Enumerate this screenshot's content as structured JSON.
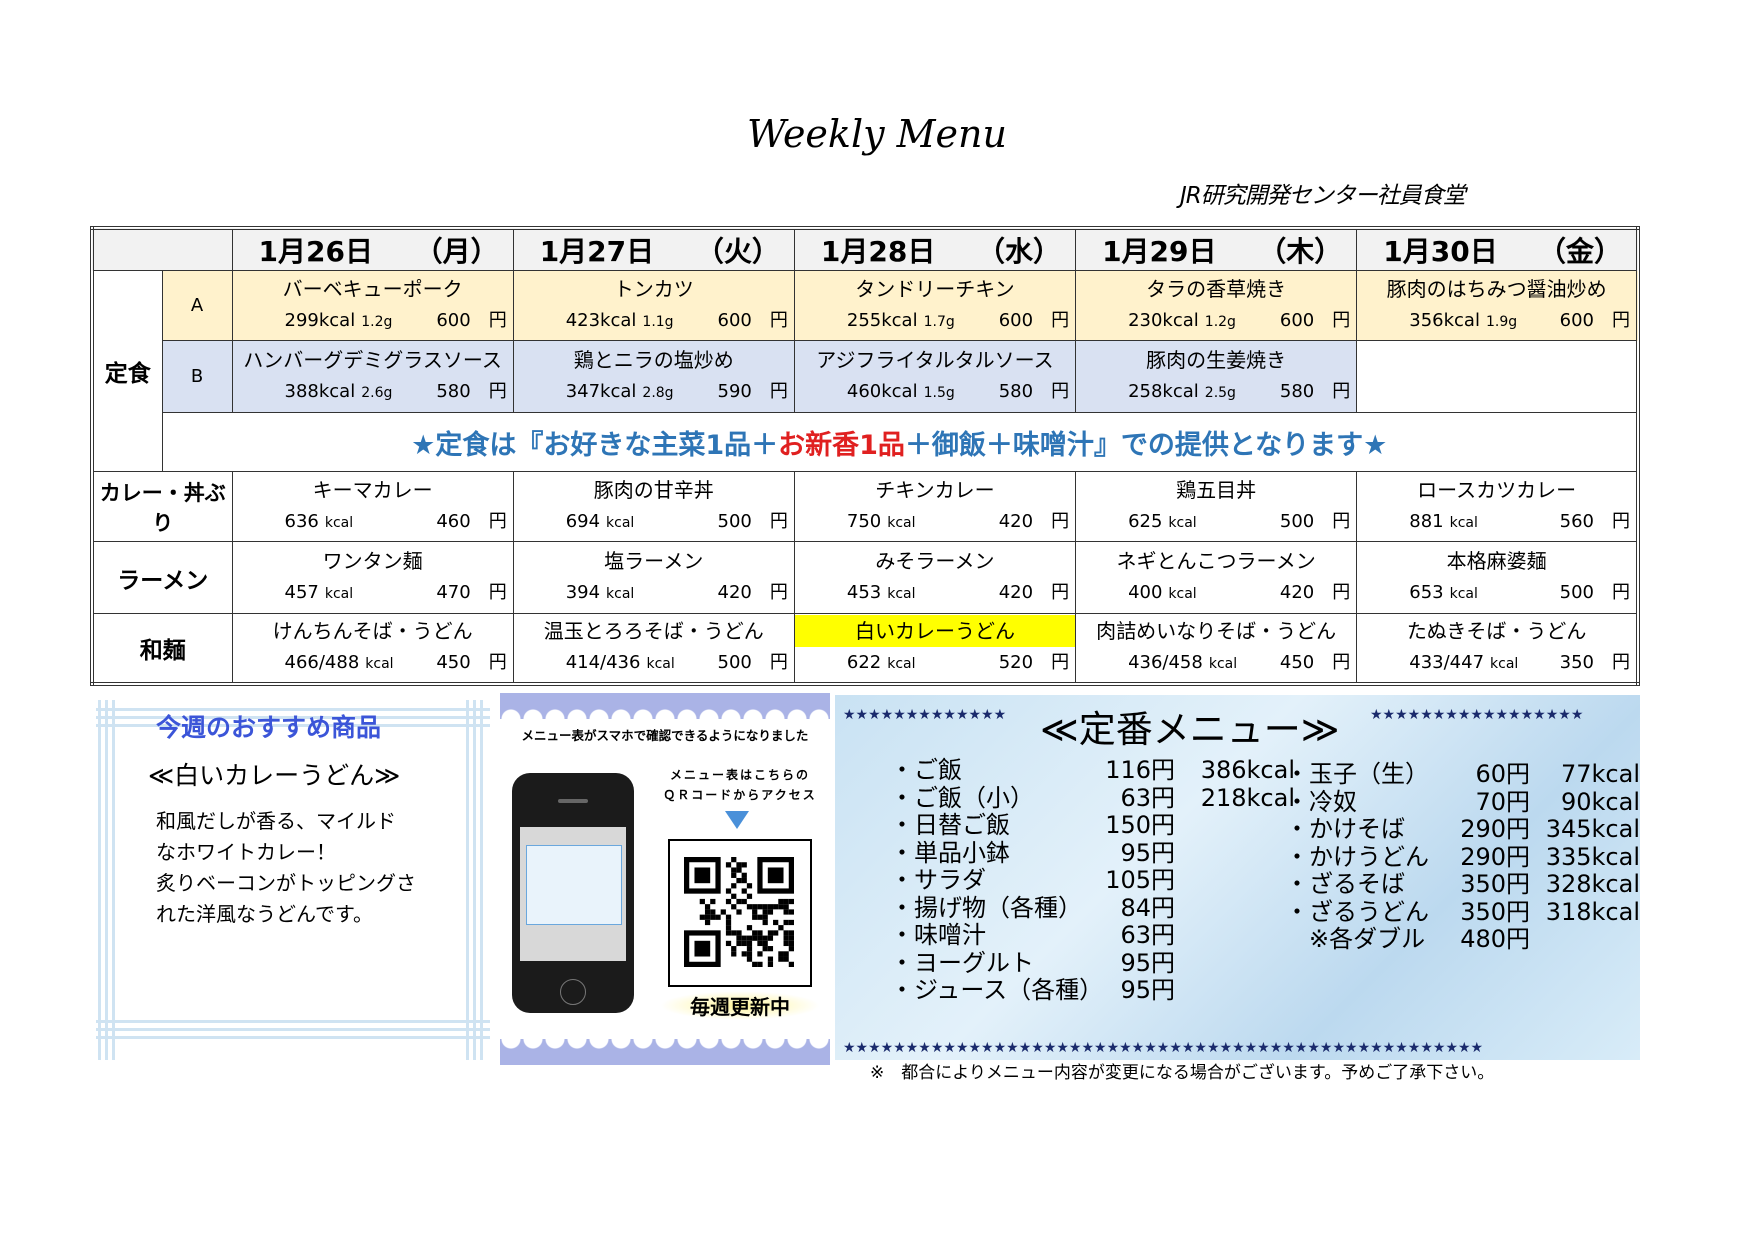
{
  "title": "Weekly Menu",
  "subtitle": "JR研究開発センター社員食堂",
  "days": [
    {
      "date": "1月26日",
      "dow": "（月）"
    },
    {
      "date": "1月27日",
      "dow": "（火）"
    },
    {
      "date": "1月28日",
      "dow": "（水）"
    },
    {
      "date": "1月29日",
      "dow": "（木）"
    },
    {
      "date": "1月30日",
      "dow": "（金）"
    }
  ],
  "teishoku": {
    "label": "定食",
    "a_label": "A",
    "b_label": "B",
    "a": [
      {
        "name": "バーベキューポーク",
        "kcal": "299kcal",
        "salt": "1.2g",
        "price": "600",
        "yen": "円"
      },
      {
        "name": "トンカツ",
        "kcal": "423kcal",
        "salt": "1.1g",
        "price": "600",
        "yen": "円"
      },
      {
        "name": "タンドリーチキン",
        "kcal": "255kcal",
        "salt": "1.7g",
        "price": "600",
        "yen": "円"
      },
      {
        "name": "タラの香草焼き",
        "kcal": "230kcal",
        "salt": "1.2g",
        "price": "600",
        "yen": "円"
      },
      {
        "name": "豚肉のはちみつ醤油炒め",
        "kcal": "356kcal",
        "salt": "1.9g",
        "price": "600",
        "yen": "円"
      }
    ],
    "b": [
      {
        "name": "ハンバーグデミグラスソース",
        "kcal": "388kcal",
        "salt": "2.6g",
        "price": "580",
        "yen": "円"
      },
      {
        "name": "鶏とニラの塩炒め",
        "kcal": "347kcal",
        "salt": "2.8g",
        "price": "590",
        "yen": "円"
      },
      {
        "name": "アジフライタルタルソース",
        "kcal": "460kcal",
        "salt": "1.5g",
        "price": "580",
        "yen": "円"
      },
      {
        "name": "豚肉の生姜焼き",
        "kcal": "258kcal",
        "salt": "2.5g",
        "price": "580",
        "yen": "円"
      }
    ],
    "notice_1": "★定食は『お好きな主菜1品＋",
    "notice_red": "お新香1品",
    "notice_2": "＋御飯＋味噌汁』での提供となります★"
  },
  "categories": [
    {
      "label": "カレー・丼ぶり",
      "items": [
        {
          "name": "キーマカレー",
          "kcal": "636",
          "unit": "kcal",
          "price": "460",
          "yen": "円"
        },
        {
          "name": "豚肉の甘辛丼",
          "kcal": "694",
          "unit": "kcal",
          "price": "500",
          "yen": "円"
        },
        {
          "name": "チキンカレー",
          "kcal": "750",
          "unit": "kcal",
          "price": "420",
          "yen": "円"
        },
        {
          "name": "鶏五目丼",
          "kcal": "625",
          "unit": "kcal",
          "price": "500",
          "yen": "円"
        },
        {
          "name": "ロースカツカレー",
          "kcal": "881",
          "unit": "kcal",
          "price": "560",
          "yen": "円"
        }
      ]
    },
    {
      "label": "ラーメン",
      "items": [
        {
          "name": "ワンタン麺",
          "kcal": "457",
          "unit": "kcal",
          "price": "470",
          "yen": "円"
        },
        {
          "name": "塩ラーメン",
          "kcal": "394",
          "unit": "kcal",
          "price": "420",
          "yen": "円"
        },
        {
          "name": "みそラーメン",
          "kcal": "453",
          "unit": "kcal",
          "price": "420",
          "yen": "円"
        },
        {
          "name": "ネギとんこつラーメン",
          "kcal": "400",
          "unit": "kcal",
          "price": "420",
          "yen": "円"
        },
        {
          "name": "本格麻婆麺",
          "kcal": "653",
          "unit": "kcal",
          "price": "500",
          "yen": "円"
        }
      ]
    },
    {
      "label": "和麺",
      "items": [
        {
          "name": "けんちんそば・うどん",
          "kcal": "466/488",
          "unit": "kcal",
          "price": "450",
          "yen": "円"
        },
        {
          "name": "温玉とろろそば・うどん",
          "kcal": "414/436",
          "unit": "kcal",
          "price": "500",
          "yen": "円"
        },
        {
          "name": "白いカレーうどん",
          "kcal": "622",
          "unit": "kcal",
          "price": "520",
          "yen": "円",
          "highlight": true
        },
        {
          "name": "肉詰めいなりそば・うどん",
          "kcal": "436/458",
          "unit": "kcal",
          "price": "450",
          "yen": "円"
        },
        {
          "name": "たぬきそば・うどん",
          "kcal": "433/447",
          "unit": "kcal",
          "price": "350",
          "yen": "円"
        }
      ]
    }
  ],
  "highlight_color": "#ffff00",
  "recommend": {
    "heading": "今週のおすすめ商品",
    "item": "≪白いカレーうどん≫",
    "lines": [
      "和風だしが香る、マイルド",
      "なホワイトカレー！",
      "炙りベーコンがトッピングさ",
      "れた洋風なうどんです。"
    ]
  },
  "qr": {
    "top_text": "メニュー表がスマホで確認できるようになりました",
    "note_1": "メニュー表はこちらの",
    "note_2": "ＱＲコードからアクセス",
    "badge": "毎週更新中"
  },
  "teiban": {
    "title": "≪定番メニュー≫",
    "stars_left": "★★★★★★★★★★★★★",
    "stars_right": "★★★★★★★★★★★★★★★★★",
    "stars_bottom": "★★★★★★★★★★★★★★★★★★★★★★★★★★★★★★★★★★★★★★★★★★★★★★★★★★★",
    "left": [
      {
        "name": "・ご飯",
        "price": "116円",
        "kcal": "386kcal"
      },
      {
        "name": "・ご飯（小）",
        "price": "63円",
        "kcal": "218kcal"
      },
      {
        "name": "・日替ご飯",
        "price": "150円",
        "kcal": ""
      },
      {
        "name": "・単品小鉢",
        "price": "95円",
        "kcal": ""
      },
      {
        "name": "・サラダ",
        "price": "105円",
        "kcal": ""
      },
      {
        "name": "・揚げ物（各種）",
        "price": "84円",
        "kcal": ""
      },
      {
        "name": "・味噌汁",
        "price": "63円",
        "kcal": ""
      },
      {
        "name": "・ヨーグルト",
        "price": "95円",
        "kcal": ""
      },
      {
        "name": "・ジュース（各種）",
        "price": "95円",
        "kcal": ""
      }
    ],
    "right": [
      {
        "name": "・玉子（生）",
        "price": "60円",
        "kcal": "77kcal"
      },
      {
        "name": "・冷奴",
        "price": "70円",
        "kcal": "90kcal"
      },
      {
        "name": "・かけそば",
        "price": "290円",
        "kcal": "345kcal"
      },
      {
        "name": "・かけうどん",
        "price": "290円",
        "kcal": "335kcal"
      },
      {
        "name": "・ざるそば",
        "price": "350円",
        "kcal": "328kcal"
      },
      {
        "name": "・ざるうどん",
        "price": "350円",
        "kcal": "318kcal"
      },
      {
        "name": "　※各ダブル",
        "price": "480円",
        "kcal": ""
      }
    ]
  },
  "footnote": "※　都合によりメニュー内容が変更になる場合がございます。予めご了承下さい。"
}
